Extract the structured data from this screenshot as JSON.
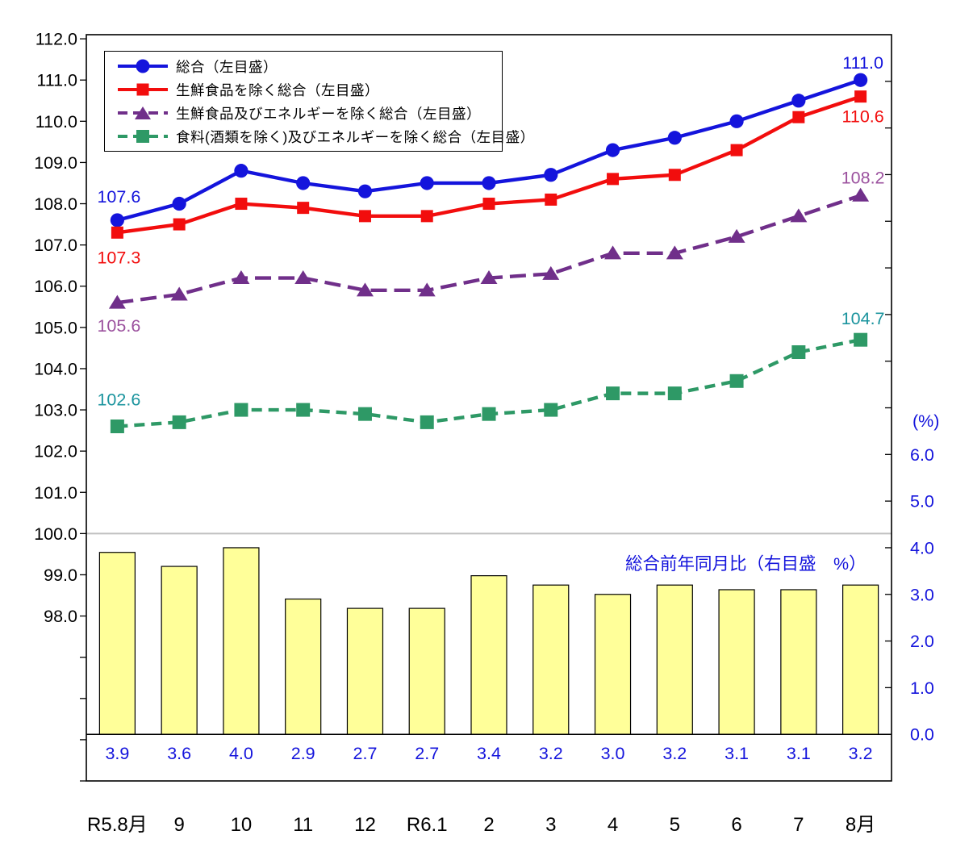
{
  "chart_data": {
    "type": "combo",
    "subtype": "4 line series on left index axis + 1 bar series on right percent axis",
    "categories": [
      "R5.8月",
      "9",
      "10",
      "11",
      "12",
      "R6.1",
      "2",
      "3",
      "4",
      "5",
      "6",
      "7",
      "8月"
    ],
    "series": [
      {
        "name": "総合（左目盛）",
        "type": "line",
        "axis": "left",
        "color": "#1414DC",
        "label_color": "#1414DC",
        "marker": "circle",
        "line_style": "solid",
        "values": [
          107.6,
          108.0,
          108.8,
          108.5,
          108.3,
          108.5,
          108.5,
          108.7,
          109.3,
          109.6,
          110.0,
          110.5,
          111.0
        ],
        "first_label": "107.6",
        "last_label": "111.0"
      },
      {
        "name": "生鮮食品を除く総合（左目盛）",
        "type": "line",
        "axis": "left",
        "color": "#F20D0D",
        "label_color": "#F20D0D",
        "marker": "square",
        "line_style": "solid",
        "values": [
          107.3,
          107.5,
          108.0,
          107.9,
          107.7,
          107.7,
          108.0,
          108.1,
          108.6,
          108.7,
          109.3,
          110.1,
          110.6
        ],
        "first_label": "107.3",
        "last_label": "110.6"
      },
      {
        "name": "生鮮食品及びエネルギーを除く総合（左目盛）",
        "type": "line",
        "axis": "left",
        "color": "#702F8A",
        "label_color": "#9B519E",
        "marker": "triangle",
        "line_style": "dashed",
        "values": [
          105.6,
          105.8,
          106.2,
          106.2,
          105.9,
          105.9,
          106.2,
          106.3,
          106.8,
          106.8,
          107.2,
          107.7,
          108.2
        ],
        "first_label": "105.6",
        "last_label": "108.2"
      },
      {
        "name": "食料(酒類を除く)及びエネルギーを除く総合（左目盛）",
        "type": "line",
        "axis": "left",
        "color": "#2E9966",
        "label_color": "#1B949E",
        "marker": "square",
        "line_style": "dashed",
        "values": [
          102.6,
          102.7,
          103.0,
          103.0,
          102.9,
          102.7,
          102.9,
          103.0,
          103.4,
          103.4,
          103.7,
          104.4,
          104.7
        ],
        "first_label": "102.6",
        "last_label": "104.7"
      }
    ],
    "bar_series": {
      "name": "総合前年同月比（右目盛　%）",
      "type": "bar",
      "axis": "right",
      "fill": "#FFFF99",
      "border_color": "#000000",
      "label_color": "#1414DC",
      "values": [
        3.9,
        3.6,
        4.0,
        2.9,
        2.7,
        2.7,
        3.4,
        3.2,
        3.0,
        3.2,
        3.1,
        3.1,
        3.2
      ]
    },
    "left_axis": {
      "ticks": [
        112.0,
        111.0,
        110.0,
        109.0,
        108.0,
        107.0,
        106.0,
        105.0,
        104.0,
        103.0,
        102.0,
        101.0,
        100.0,
        99.0,
        98.0
      ],
      "range": [
        94.0,
        112.1
      ],
      "color": "#000000"
    },
    "right_axis": {
      "unit_label": "(%)",
      "ticks": [
        6.0,
        5.0,
        4.0,
        3.0,
        2.0,
        1.0,
        0.0
      ],
      "range": [
        -1.0,
        15.0
      ],
      "color": "#1414DC"
    },
    "x_axis": {
      "labels": [
        "R5.8月",
        "9",
        "10",
        "11",
        "12",
        "R6.1",
        "2",
        "3",
        "4",
        "5",
        "6",
        "7",
        "8月"
      ],
      "color": "#000000"
    },
    "reference_line": {
      "axis": "left",
      "value": 100.0,
      "color": "#C0C0C0"
    },
    "legend_position": "top-left-inside",
    "grid": "off",
    "background": "#FFFFFF"
  }
}
